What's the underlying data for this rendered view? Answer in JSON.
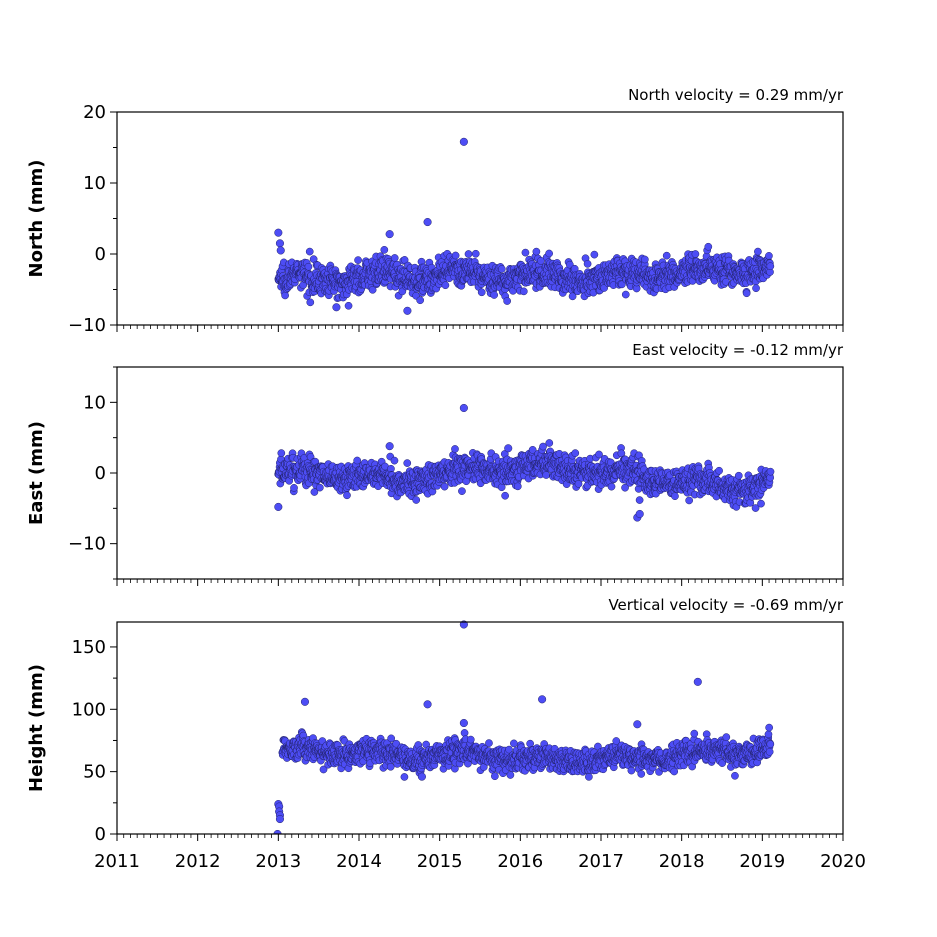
{
  "chart_data": [
    {
      "type": "scatter",
      "title": "North velocity = 0.29 mm/yr",
      "xlabel": "",
      "ylabel": "North (mm)",
      "ylim": [
        -10,
        20
      ],
      "yticks": [
        -10,
        0,
        10,
        20
      ],
      "xlim": [
        2011,
        2020
      ],
      "color": "#4d4df5",
      "series": [
        {
          "x_range": [
            2013.0,
            2019.1
          ],
          "base_level": [
            -3.5,
            -3.5,
            -3.0,
            -3.0,
            -3.2,
            -3.0,
            -2.2,
            -1.8
          ],
          "scatter_amplitude": 1.5,
          "outliers": [
            {
              "x": 2013.0,
              "y": 3.0
            },
            {
              "x": 2013.02,
              "y": 1.5
            },
            {
              "x": 2013.03,
              "y": 0.5
            },
            {
              "x": 2014.38,
              "y": 2.8
            },
            {
              "x": 2014.85,
              "y": 4.5
            },
            {
              "x": 2015.3,
              "y": 15.8
            },
            {
              "x": 2014.6,
              "y": -8.0
            },
            {
              "x": 2013.72,
              "y": -7.5
            }
          ]
        }
      ]
    },
    {
      "type": "scatter",
      "title": "East velocity = -0.12 mm/yr",
      "xlabel": "",
      "ylabel": "East (mm)",
      "ylim": [
        -15,
        15
      ],
      "yticks": [
        -10,
        0,
        10
      ],
      "xlim": [
        2011,
        2020
      ],
      "color": "#4d4df5",
      "series": [
        {
          "x_range": [
            2013.0,
            2019.1
          ],
          "base_level": [
            0.0,
            0.0,
            -1.0,
            0.5,
            1.0,
            -0.5,
            -2.0,
            -1.0
          ],
          "scatter_amplitude": 1.5,
          "outliers": [
            {
              "x": 2015.3,
              "y": 9.2
            },
            {
              "x": 2013.0,
              "y": -4.8
            },
            {
              "x": 2014.38,
              "y": 3.8
            },
            {
              "x": 2015.85,
              "y": 3.5
            },
            {
              "x": 2017.45,
              "y": -6.3
            },
            {
              "x": 2017.48,
              "y": -5.8
            }
          ]
        }
      ]
    },
    {
      "type": "scatter",
      "title": "Vertical velocity = -0.69 mm/yr",
      "xlabel": "",
      "ylabel": "Height (mm)",
      "ylim": [
        0,
        170
      ],
      "yticks": [
        0,
        50,
        100,
        150
      ],
      "xlim": [
        2011,
        2020
      ],
      "xticks": [
        "2011",
        "2012",
        "2013",
        "2014",
        "2015",
        "2016",
        "2017",
        "2018",
        "2019",
        "2020"
      ],
      "color": "#4d4df5",
      "series": [
        {
          "x_range": [
            2013.05,
            2019.1
          ],
          "base_level": [
            68,
            67,
            63,
            64,
            58,
            62,
            66,
            70
          ],
          "scatter_amplitude": 7,
          "outliers": [
            {
              "x": 2013.33,
              "y": 106
            },
            {
              "x": 2014.85,
              "y": 104
            },
            {
              "x": 2015.3,
              "y": 168
            },
            {
              "x": 2015.3,
              "y": 89
            },
            {
              "x": 2016.27,
              "y": 108
            },
            {
              "x": 2018.2,
              "y": 122
            },
            {
              "x": 2017.45,
              "y": 88
            },
            {
              "x": 2014.78,
              "y": 46
            },
            {
              "x": 2013.0,
              "y": 24
            },
            {
              "x": 2013.01,
              "y": 22
            },
            {
              "x": 2013.01,
              "y": 18
            },
            {
              "x": 2013.02,
              "y": 15
            },
            {
              "x": 2013.02,
              "y": 12
            },
            {
              "x": 2012.99,
              "y": 0
            }
          ]
        }
      ]
    }
  ]
}
